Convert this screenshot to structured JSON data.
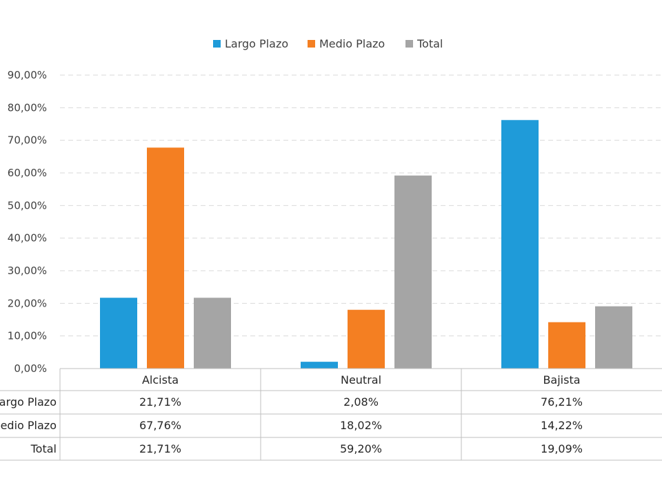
{
  "chart_data": {
    "type": "bar",
    "categories": [
      "Alcista",
      "Neutral",
      "Bajista"
    ],
    "series": [
      {
        "name": "Largo Plazo",
        "color": "#1f9bd9",
        "values": [
          21.71,
          2.08,
          76.21
        ],
        "labels": [
          "21,71%",
          "2,08%",
          "76,21%"
        ]
      },
      {
        "name": "Medio Plazo",
        "color": "#f47f22",
        "values": [
          67.76,
          18.02,
          14.22
        ],
        "labels": [
          "67,76%",
          "18,02%",
          "14,22%"
        ]
      },
      {
        "name": "Total",
        "color": "#a5a5a5",
        "values": [
          21.71,
          59.2,
          19.09
        ],
        "labels": [
          "21,71%",
          "59,20%",
          "19,09%"
        ]
      }
    ],
    "yticks": [
      "0,00%",
      "10,00%",
      "20,00%",
      "30,00%",
      "40,00%",
      "50,00%",
      "60,00%",
      "70,00%",
      "80,00%",
      "90,00%"
    ],
    "ylim": [
      0,
      90
    ],
    "grid": true,
    "legend_position": "top",
    "data_table": true
  }
}
